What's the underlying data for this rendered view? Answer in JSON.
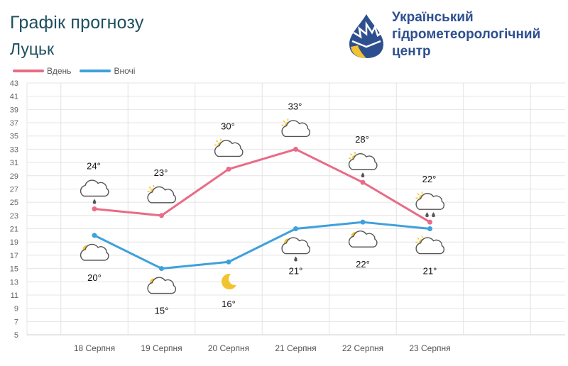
{
  "header": {
    "title": "Графік прогнозу",
    "city": "Луцьк"
  },
  "logo": {
    "line1": "Український",
    "line2": "гідрометеорологічний",
    "line3": "центр"
  },
  "colors": {
    "day": "#e96b86",
    "night": "#3fa0dc",
    "grid": "#e4e4e4",
    "title": "#1d4f5f"
  },
  "chart_data": {
    "type": "line",
    "categories": [
      "18 Серпня",
      "19 Серпня",
      "20 Серпня",
      "21 Серпня",
      "22 Серпня",
      "23 Серпня"
    ],
    "series": [
      {
        "name": "Вдень",
        "values": [
          24,
          23,
          30,
          33,
          28,
          22
        ]
      },
      {
        "name": "Вночі",
        "values": [
          20,
          15,
          16,
          21,
          22,
          21
        ]
      }
    ],
    "day_labels": [
      "24°",
      "23°",
      "30°",
      "33°",
      "28°",
      "22°"
    ],
    "night_labels": [
      "20°",
      "15°",
      "16°",
      "21°",
      "22°",
      "21°"
    ],
    "day_icons": [
      "cloud-rain-icon",
      "sun-cloud-icon",
      "sun-cloud-icon",
      "sun-cloud-icon",
      "sun-cloud-rain-icon",
      "sun-cloud-heavy-rain-icon"
    ],
    "night_icons": [
      "moon-cloud-icon",
      "moon-cloud-icon",
      "moon-icon",
      "moon-cloud-rain-icon",
      "moon-cloud-icon",
      "sun-cloud-icon"
    ],
    "ylim": [
      5,
      43
    ],
    "yticks": [
      5,
      7,
      9,
      11,
      13,
      15,
      17,
      19,
      21,
      23,
      25,
      27,
      29,
      31,
      33,
      35,
      37,
      39,
      41,
      43
    ],
    "legend": "top-left",
    "grid": true
  }
}
